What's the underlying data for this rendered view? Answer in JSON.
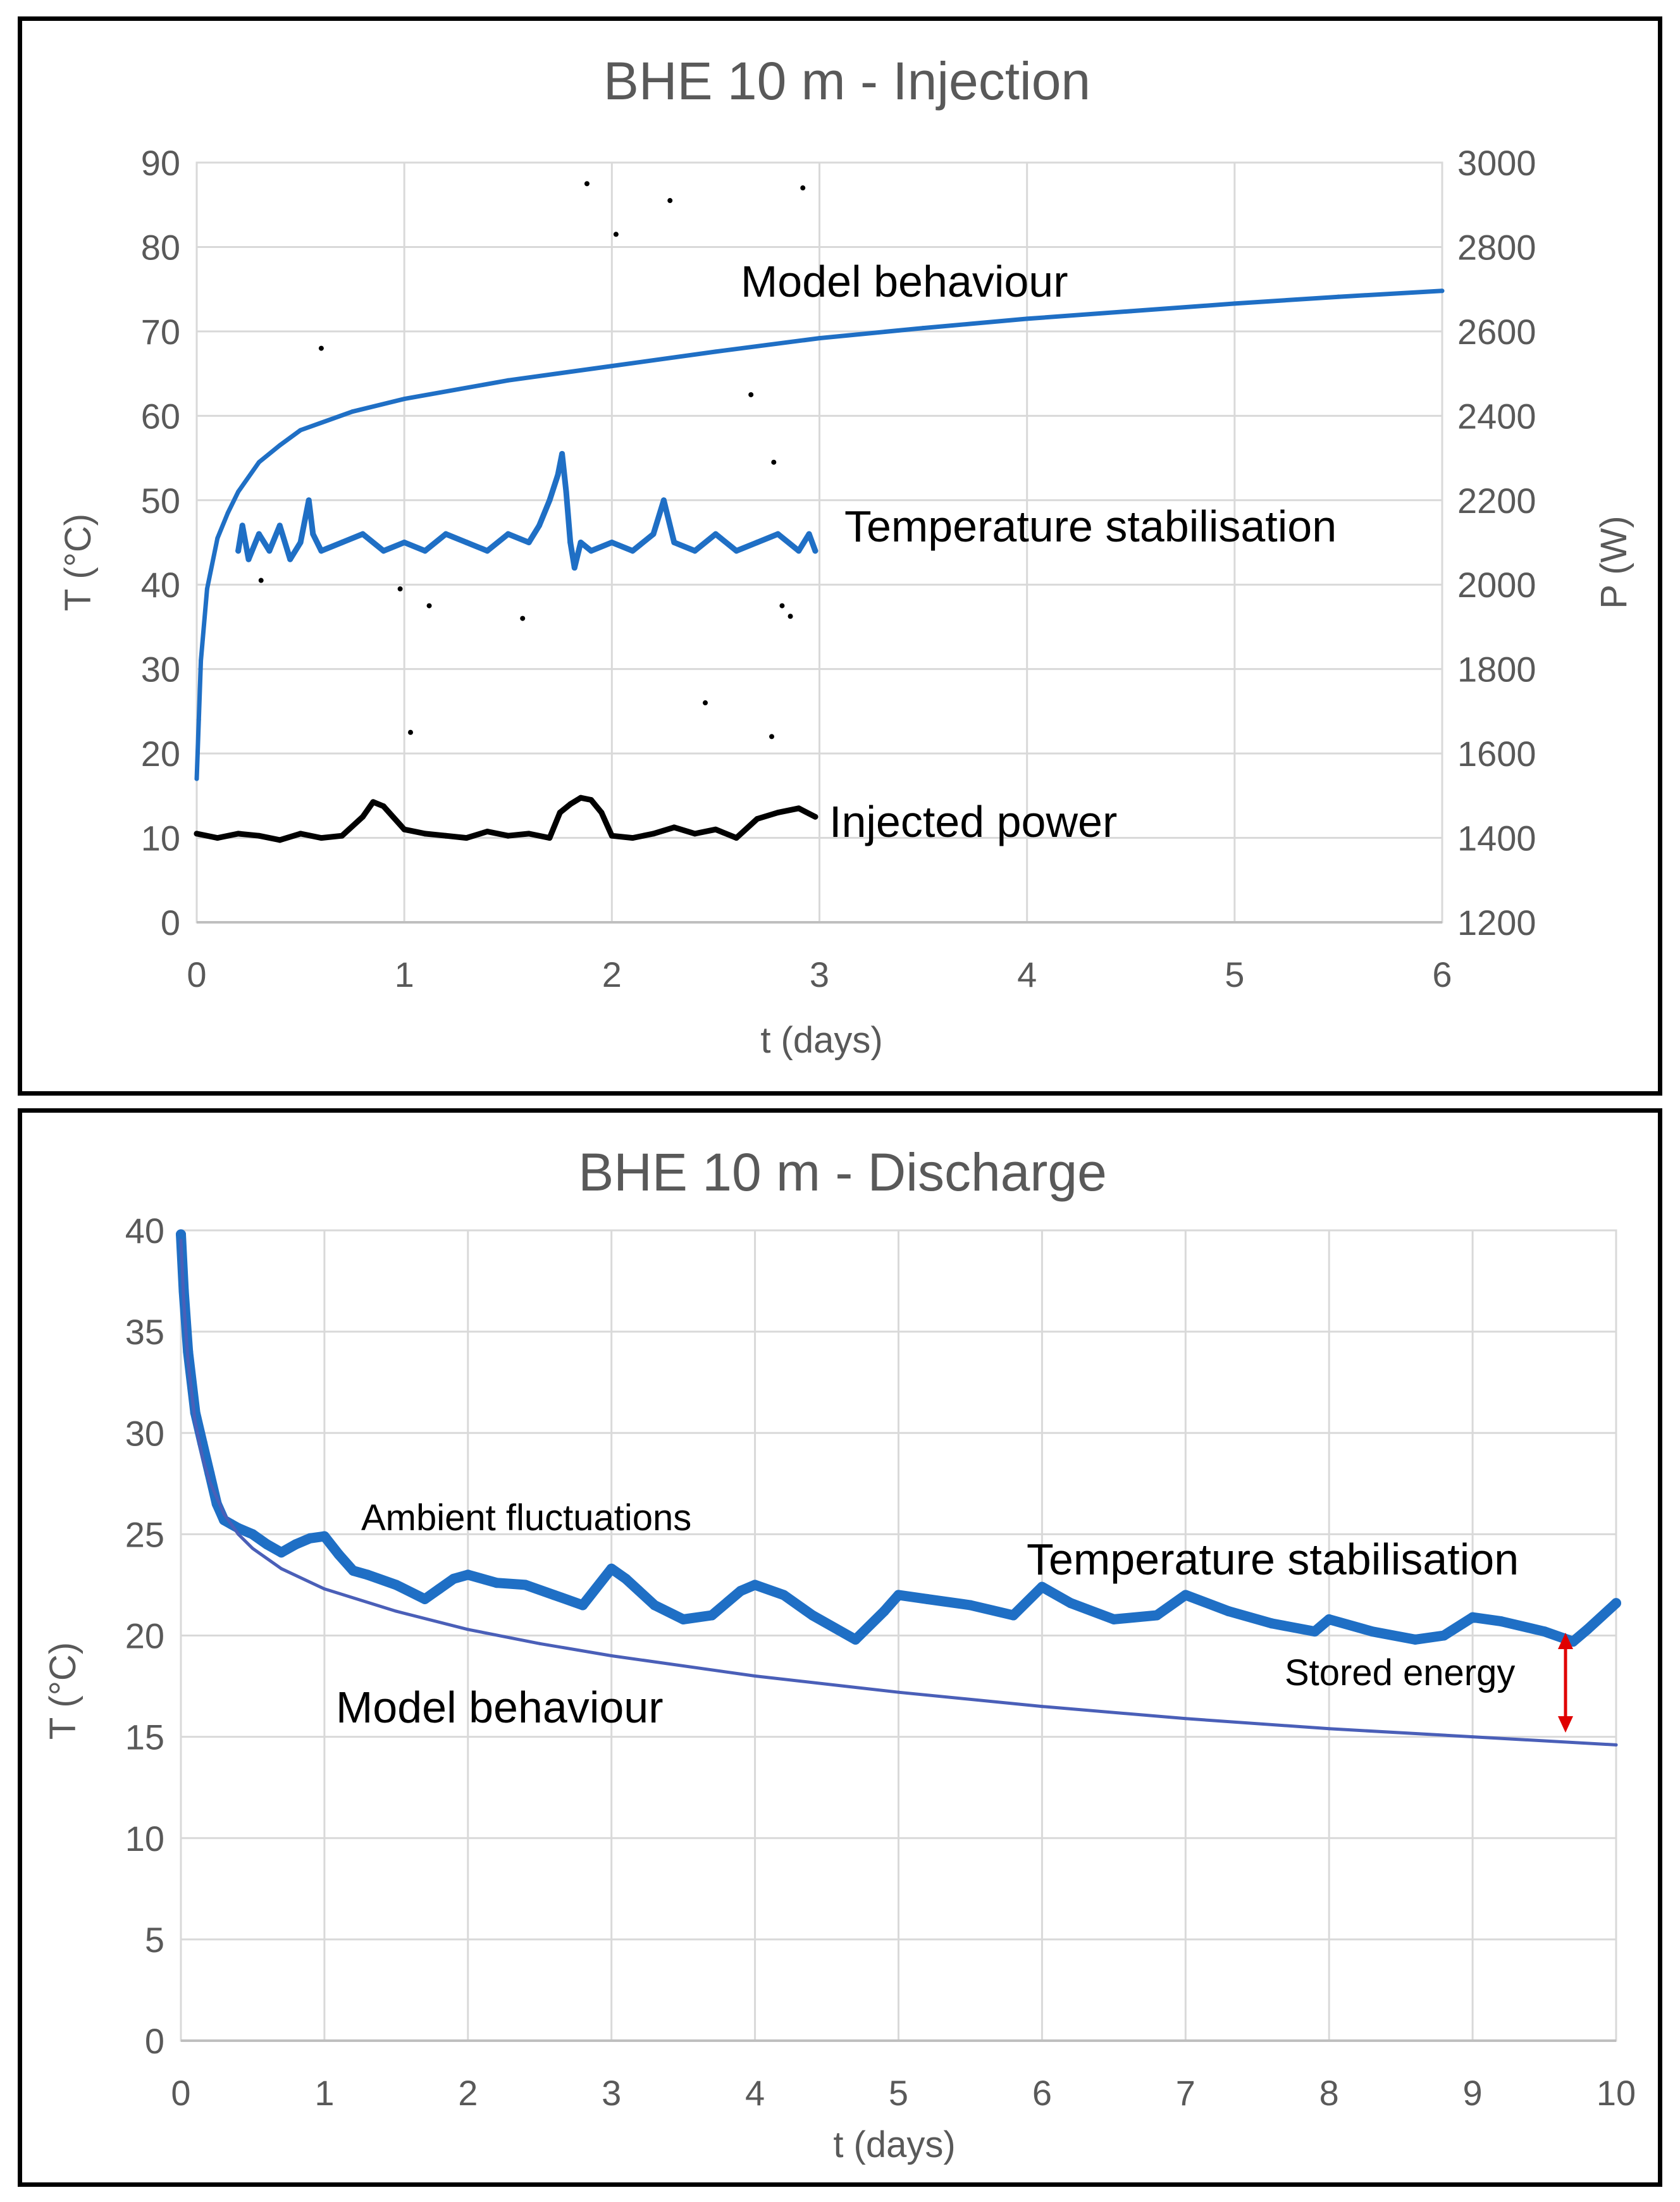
{
  "chart_data": [
    {
      "type": "line",
      "title": "BHE 10 m - Injection",
      "xlabel": "t (days)",
      "ylabel": "T (°C)",
      "y2label": "P (W)",
      "xlim": [
        0,
        6
      ],
      "ylim": [
        0,
        90
      ],
      "y2lim": [
        1200,
        3000
      ],
      "xticks": [
        "0",
        "1",
        "2",
        "3",
        "4",
        "5",
        "6"
      ],
      "yticks": [
        "0",
        "10",
        "20",
        "30",
        "40",
        "50",
        "60",
        "70",
        "80",
        "90"
      ],
      "y2ticks": [
        "1200",
        "1400",
        "1600",
        "1800",
        "2000",
        "2200",
        "2400",
        "2600",
        "2800",
        "3000"
      ],
      "grid": true,
      "annotations": [
        "Model behaviour",
        "Temperature stabilisation",
        "Injected power"
      ],
      "series": [
        {
          "name": "Model behaviour",
          "axis": "left",
          "color": "#1f6fc5",
          "x": [
            0,
            0.01,
            0.02,
            0.05,
            0.1,
            0.15,
            0.2,
            0.3,
            0.4,
            0.5,
            0.75,
            1,
            1.5,
            2,
            2.5,
            3,
            3.5,
            4,
            4.5,
            5,
            5.5,
            6
          ],
          "values": [
            17,
            24,
            31,
            39.5,
            45.5,
            48.5,
            51,
            54.5,
            56.5,
            58.3,
            60.5,
            62,
            64.2,
            65.9,
            67.6,
            69.2,
            70.4,
            71.5,
            72.4,
            73.3,
            74.1,
            74.8
          ]
        },
        {
          "name": "Temperature stabilisation",
          "axis": "left",
          "color": "#1f6fc5",
          "x": [
            0.2,
            0.22,
            0.25,
            0.3,
            0.35,
            0.4,
            0.45,
            0.5,
            0.54,
            0.56,
            0.6,
            0.7,
            0.8,
            0.9,
            1.0,
            1.1,
            1.2,
            1.3,
            1.4,
            1.5,
            1.6,
            1.65,
            1.7,
            1.74,
            1.76,
            1.78,
            1.8,
            1.82,
            1.85,
            1.9,
            2.0,
            2.1,
            2.2,
            2.25,
            2.3,
            2.4,
            2.5,
            2.6,
            2.7,
            2.8,
            2.9,
            2.95,
            2.98
          ],
          "values": [
            44,
            47,
            43,
            46,
            44,
            47,
            43,
            45,
            50,
            46,
            44,
            45,
            46,
            44,
            45,
            44,
            46,
            45,
            44,
            46,
            45,
            47,
            50,
            53,
            55.5,
            51,
            45,
            42,
            45,
            44,
            45,
            44,
            46,
            50,
            45,
            44,
            46,
            44,
            45,
            46,
            44,
            46,
            44
          ]
        },
        {
          "name": "Injected power",
          "axis": "right",
          "color": "#000000",
          "x": [
            0,
            0.1,
            0.2,
            0.3,
            0.4,
            0.5,
            0.6,
            0.7,
            0.8,
            0.85,
            0.9,
            1.0,
            1.1,
            1.2,
            1.3,
            1.4,
            1.5,
            1.6,
            1.7,
            1.75,
            1.8,
            1.85,
            1.9,
            1.95,
            2.0,
            2.1,
            2.2,
            2.3,
            2.4,
            2.5,
            2.6,
            2.7,
            2.8,
            2.9,
            2.98
          ],
          "values": [
            1410,
            1400,
            1410,
            1405,
            1395,
            1410,
            1400,
            1405,
            1450,
            1485,
            1475,
            1420,
            1410,
            1405,
            1400,
            1415,
            1405,
            1410,
            1400,
            1460,
            1480,
            1495,
            1490,
            1460,
            1405,
            1400,
            1410,
            1425,
            1410,
            1420,
            1400,
            1445,
            1460,
            1470,
            1450
          ]
        },
        {
          "name": "Scattered points",
          "axis": "right",
          "color": "#000000",
          "x": [
            0.6,
            1.88,
            2.02,
            2.28,
            2.92,
            2.67,
            2.78,
            0.98,
            1.12,
            1.57,
            2.82,
            2.86,
            1.03,
            2.45,
            2.77,
            0.31
          ],
          "values": [
            2560,
            2950,
            2830,
            2910,
            2940,
            2450,
            2290,
            1990,
            1950,
            1920,
            1950,
            1925,
            1650,
            1720,
            1640,
            2010
          ]
        }
      ]
    },
    {
      "type": "line",
      "title": "BHE 10 m - Discharge",
      "xlabel": "t (days)",
      "ylabel": "T (°C)",
      "xlim": [
        0,
        10
      ],
      "ylim": [
        0,
        40
      ],
      "xticks": [
        "0",
        "1",
        "2",
        "3",
        "4",
        "5",
        "6",
        "7",
        "8",
        "9",
        "10"
      ],
      "yticks": [
        "0",
        "5",
        "10",
        "15",
        "20",
        "25",
        "30",
        "35",
        "40"
      ],
      "grid": true,
      "annotations": [
        "Ambient fluctuations",
        "Temperature stabilisation",
        "Model behaviour",
        "Stored energy"
      ],
      "series": [
        {
          "name": "Temperature stabilisation",
          "color": "#1f6fc5",
          "x": [
            0,
            0.02,
            0.05,
            0.1,
            0.15,
            0.2,
            0.25,
            0.3,
            0.35,
            0.4,
            0.5,
            0.6,
            0.7,
            0.8,
            0.9,
            1.0,
            1.1,
            1.2,
            1.3,
            1.5,
            1.7,
            1.8,
            1.9,
            2.0,
            2.2,
            2.4,
            2.6,
            2.8,
            3.0,
            3.1,
            3.3,
            3.5,
            3.7,
            3.9,
            4.0,
            4.2,
            4.4,
            4.7,
            4.9,
            5.0,
            5.2,
            5.5,
            5.8,
            6.0,
            6.2,
            6.5,
            6.8,
            7.0,
            7.3,
            7.6,
            7.9,
            8.0,
            8.3,
            8.6,
            8.8,
            9.0,
            9.2,
            9.5,
            9.7,
            9.8,
            10.0
          ],
          "values": [
            39.8,
            37,
            34,
            31,
            29.5,
            28,
            26.5,
            25.7,
            25.5,
            25.3,
            25,
            24.5,
            24.1,
            24.5,
            24.8,
            24.9,
            24,
            23.2,
            23,
            22.5,
            21.8,
            22.3,
            22.8,
            23,
            22.6,
            22.5,
            22,
            21.5,
            23.3,
            22.8,
            21.5,
            20.8,
            21,
            22.2,
            22.5,
            22,
            21,
            19.8,
            21.2,
            22,
            21.8,
            21.5,
            21,
            22.4,
            21.6,
            20.8,
            21,
            22,
            21.2,
            20.6,
            20.2,
            20.8,
            20.2,
            19.8,
            20,
            20.9,
            20.7,
            20.2,
            19.7,
            20.3,
            21.6
          ]
        },
        {
          "name": "Model behaviour",
          "color": "#4a5fb8",
          "x": [
            0,
            0.02,
            0.05,
            0.1,
            0.15,
            0.2,
            0.3,
            0.4,
            0.5,
            0.7,
            1,
            1.5,
            2,
            2.5,
            3,
            4,
            5,
            6,
            7,
            8,
            9,
            10
          ],
          "values": [
            39.5,
            36.5,
            33.5,
            30.5,
            28.8,
            27.6,
            26,
            25,
            24.3,
            23.3,
            22.3,
            21.2,
            20.3,
            19.6,
            19,
            18,
            17.2,
            16.5,
            15.9,
            15.4,
            15,
            14.6
          ]
        }
      ]
    }
  ]
}
